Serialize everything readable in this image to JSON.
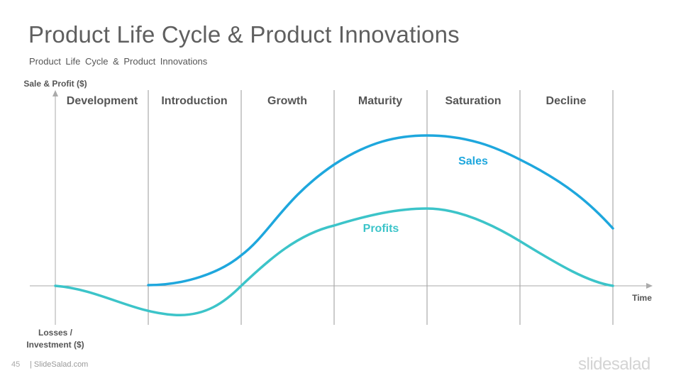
{
  "slide": {
    "title": "Product Life Cycle & Product Innovations",
    "subtitle": "Product Life Cycle & Product Innovations",
    "page_number": "45",
    "footer_brand": "| SlideSalad.com",
    "logo_text": "slidesalad"
  },
  "diagram": {
    "y_axis_label": "Sale & Profit ($)",
    "x_axis_label": "Time",
    "negative_label_line1": "Losses /",
    "negative_label_line2": "Investment ($)",
    "stages": [
      "Development",
      "Introduction",
      "Growth",
      "Maturity",
      "Saturation",
      "Decline"
    ],
    "sales_label": "Sales",
    "profits_label": "Profits",
    "colors": {
      "sales": "#1ea7dd",
      "profits": "#3cc4c9",
      "divider": "#9a9a9a",
      "axis": "#aaaaaa",
      "text": "#555555"
    }
  }
}
